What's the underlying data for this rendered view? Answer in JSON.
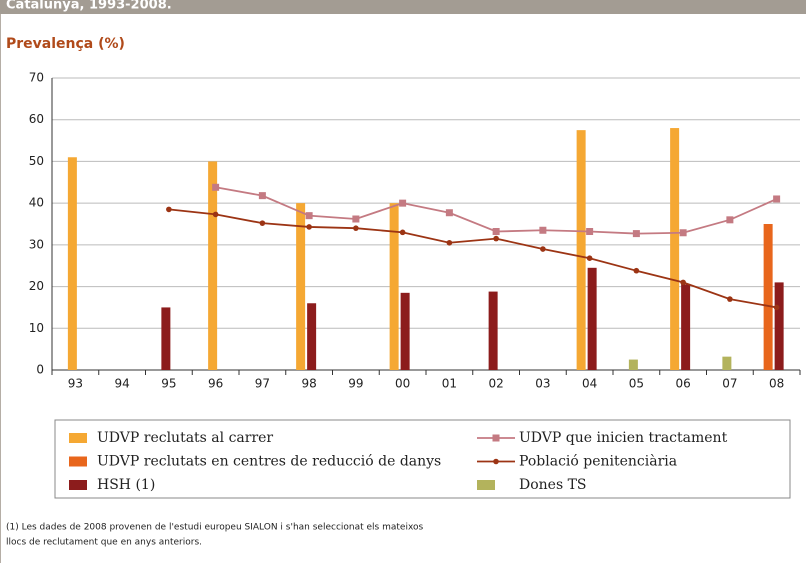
{
  "header": "Catalunya, 1993-2008.",
  "chart_data": {
    "type": "bar",
    "ylabel": "Prevalença (%)",
    "categories": [
      "93",
      "94",
      "95",
      "96",
      "97",
      "98",
      "99",
      "00",
      "01",
      "02",
      "03",
      "04",
      "05",
      "06",
      "07",
      "08"
    ],
    "ylim": [
      0,
      70
    ],
    "yticks": [
      0,
      10,
      20,
      30,
      40,
      50,
      60,
      70
    ],
    "grid": true,
    "series": [
      {
        "name": "UDVP reclutats al carrer",
        "type": "bar",
        "color": "#f5a833",
        "values": [
          51,
          null,
          null,
          50,
          null,
          40,
          null,
          40,
          null,
          null,
          null,
          57.5,
          null,
          58,
          null,
          null
        ]
      },
      {
        "name": "UDVP reclutats en centres de reducció de danys",
        "type": "bar",
        "color": "#e8661c",
        "values": [
          null,
          null,
          null,
          null,
          null,
          null,
          null,
          null,
          null,
          null,
          null,
          null,
          null,
          null,
          null,
          35
        ]
      },
      {
        "name": "HSH (1)",
        "type": "bar",
        "color": "#8c1c1c",
        "values": [
          null,
          null,
          15,
          null,
          null,
          16,
          null,
          18.5,
          null,
          18.8,
          null,
          24.5,
          null,
          20.5,
          null,
          21
        ]
      },
      {
        "name": "UDVP que inicien tractament",
        "type": "line",
        "color": "#c47a82",
        "values": [
          null,
          null,
          null,
          43.8,
          41.8,
          37,
          36.2,
          40,
          37.7,
          33.2,
          33.5,
          33.2,
          32.7,
          32.9,
          36,
          41
        ]
      },
      {
        "name": "Població penitenciària",
        "type": "line",
        "color": "#9c3414",
        "values": [
          null,
          null,
          38.5,
          37.3,
          35.2,
          34.3,
          34,
          33,
          30.5,
          31.5,
          29,
          26.8,
          23.8,
          21,
          17,
          15
        ]
      },
      {
        "name": "Dones TS",
        "type": "bar",
        "color": "#b3b35c",
        "values": [
          null,
          null,
          null,
          null,
          null,
          null,
          null,
          null,
          null,
          null,
          null,
          null,
          2.5,
          null,
          3.2,
          null
        ]
      }
    ],
    "footnote": [
      "(1) Les dades de 2008 provenen de l'estudi europeu SIALON i s'han seleccionat els mateixos",
      "llocs de reclutament que en anys anteriors."
    ]
  }
}
